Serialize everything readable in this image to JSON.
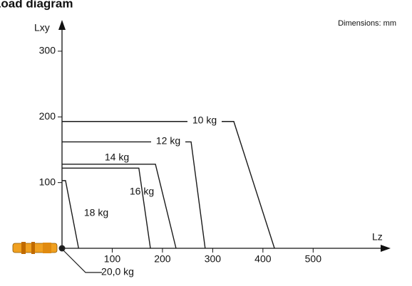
{
  "chart_data": {
    "type": "line",
    "title": "Load diagram",
    "annotation": "Dimensions: mm",
    "x_label": "Lz",
    "y_label": "Lxy",
    "xlim": [
      0,
      650
    ],
    "ylim": [
      0,
      340
    ],
    "xticks": [
      100,
      200,
      300,
      400,
      500
    ],
    "yticks": [
      100,
      200,
      300
    ],
    "color": "#1a1a1a",
    "series": [
      {
        "name": "10 kg",
        "x": [
          0,
          342,
          423
        ],
        "values": [
          193,
          193,
          0
        ]
      },
      {
        "name": "12 kg",
        "x": [
          0,
          257,
          285
        ],
        "values": [
          162,
          162,
          0
        ]
      },
      {
        "name": "14 kg",
        "x": [
          0,
          186,
          227
        ],
        "values": [
          128,
          128,
          0
        ]
      },
      {
        "name": "16 kg",
        "x": [
          0,
          153,
          176
        ],
        "values": [
          122,
          122,
          0
        ]
      },
      {
        "name": "18 kg",
        "x": [
          0,
          7,
          33
        ],
        "values": [
          103,
          103,
          0
        ]
      },
      {
        "name": "20,0 kg",
        "x": [
          0
        ],
        "values": [
          0
        ]
      }
    ]
  }
}
